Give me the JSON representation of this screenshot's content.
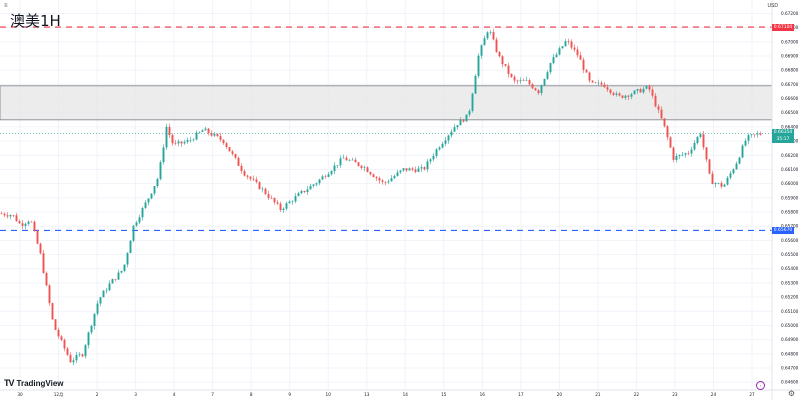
{
  "header": {
    "title": "澳美1H",
    "menu_icon": "hamburger-icon",
    "currency": "USD"
  },
  "branding": {
    "logo_icon": "tradingview-logo-icon",
    "logo_text": "TradingView"
  },
  "colors": {
    "up": "#26a69a",
    "down": "#ef5350",
    "resistance": "#f23645",
    "support": "#2962ff",
    "zone_fill": "#e6e6e6",
    "zone_border": "#787b86",
    "price_tag": "#26a69a"
  },
  "chart_data": {
    "type": "candlestick",
    "title": "澳美1H",
    "y_axis": {
      "currency": "USD",
      "ticks": [
        "0.67200",
        "0.67100",
        "0.67000",
        "0.66900",
        "0.66800",
        "0.66700",
        "0.66600",
        "0.66500",
        "0.66400",
        "0.66300",
        "0.66200",
        "0.66100",
        "0.66000",
        "0.65900",
        "0.65800",
        "0.65700",
        "0.65600",
        "0.65500",
        "0.65400",
        "0.65300",
        "0.65200",
        "0.65100",
        "0.65000",
        "0.64900",
        "0.64800",
        "0.64700",
        "0.64600"
      ],
      "range": [
        0.64545,
        0.67295
      ]
    },
    "x_axis": {
      "ticks": [
        "30",
        "12月",
        "2",
        "3",
        "4",
        "7",
        "8",
        "9",
        "10",
        "13",
        "14",
        "15",
        "16",
        "17",
        "20",
        "21",
        "22",
        "23",
        "24",
        "27"
      ]
    },
    "levels": {
      "resistance": {
        "price": 0.67104,
        "label": "0.67104"
      },
      "support": {
        "price": 0.6567,
        "label": "0.65670"
      }
    },
    "zone": {
      "top": 0.6669,
      "bottom": 0.6645
    },
    "current_price": {
      "price": 0.66354,
      "label": "0.66354",
      "countdown": "35:17"
    },
    "anchors": [
      {
        "t": 0,
        "p": 0.6579
      },
      {
        "t": 14,
        "p": 0.6578
      },
      {
        "t": 22,
        "p": 0.6571
      },
      {
        "t": 32,
        "p": 0.6575
      },
      {
        "t": 42,
        "p": 0.655
      },
      {
        "t": 55,
        "p": 0.65
      },
      {
        "t": 72,
        "p": 0.6475
      },
      {
        "t": 84,
        "p": 0.648
      },
      {
        "t": 100,
        "p": 0.6518
      },
      {
        "t": 112,
        "p": 0.653
      },
      {
        "t": 125,
        "p": 0.654
      },
      {
        "t": 135,
        "p": 0.657
      },
      {
        "t": 150,
        "p": 0.659
      },
      {
        "t": 160,
        "p": 0.6605
      },
      {
        "t": 168,
        "p": 0.664
      },
      {
        "t": 175,
        "p": 0.6627
      },
      {
        "t": 190,
        "p": 0.663
      },
      {
        "t": 205,
        "p": 0.6638
      },
      {
        "t": 225,
        "p": 0.663
      },
      {
        "t": 245,
        "p": 0.6608
      },
      {
        "t": 265,
        "p": 0.6595
      },
      {
        "t": 282,
        "p": 0.6582
      },
      {
        "t": 300,
        "p": 0.6592
      },
      {
        "t": 320,
        "p": 0.6602
      },
      {
        "t": 345,
        "p": 0.6618
      },
      {
        "t": 365,
        "p": 0.6612
      },
      {
        "t": 385,
        "p": 0.66
      },
      {
        "t": 405,
        "p": 0.661
      },
      {
        "t": 425,
        "p": 0.661
      },
      {
        "t": 440,
        "p": 0.6626
      },
      {
        "t": 458,
        "p": 0.6642
      },
      {
        "t": 470,
        "p": 0.6648
      },
      {
        "t": 480,
        "p": 0.669
      },
      {
        "t": 490,
        "p": 0.671
      },
      {
        "t": 500,
        "p": 0.669
      },
      {
        "t": 515,
        "p": 0.6672
      },
      {
        "t": 528,
        "p": 0.6672
      },
      {
        "t": 540,
        "p": 0.6665
      },
      {
        "t": 552,
        "p": 0.6685
      },
      {
        "t": 568,
        "p": 0.6701
      },
      {
        "t": 580,
        "p": 0.669
      },
      {
        "t": 592,
        "p": 0.667
      },
      {
        "t": 605,
        "p": 0.667
      },
      {
        "t": 620,
        "p": 0.6661
      },
      {
        "t": 635,
        "p": 0.6664
      },
      {
        "t": 650,
        "p": 0.6668
      },
      {
        "t": 665,
        "p": 0.6642
      },
      {
        "t": 675,
        "p": 0.6618
      },
      {
        "t": 690,
        "p": 0.6622
      },
      {
        "t": 702,
        "p": 0.6636
      },
      {
        "t": 712,
        "p": 0.6602
      },
      {
        "t": 725,
        "p": 0.6598
      },
      {
        "t": 738,
        "p": 0.6615
      },
      {
        "t": 748,
        "p": 0.6632
      },
      {
        "t": 760,
        "p": 0.6635
      }
    ]
  }
}
